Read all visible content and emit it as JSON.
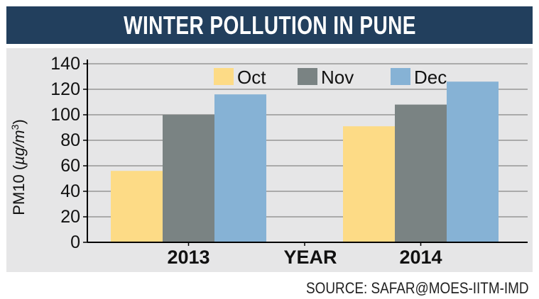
{
  "title": "WINTER POLLUTION IN PUNE",
  "source": "SOURCE: SAFAR@MOES-IITM-IMD",
  "colors": {
    "title_bg": "#223f5d",
    "panel_bg": "#e6e6e7",
    "oct": "#fddb86",
    "nov": "#7a8383",
    "dec": "#86b2d5"
  },
  "chart_data": {
    "type": "bar",
    "title": "WINTER POLLUTION IN PUNE",
    "xlabel": "YEAR",
    "ylabel_prefix": "PM10 (",
    "ylabel_unit": "µg/m",
    "ylabel_sup": "3",
    "ylabel_suffix": ")",
    "categories": [
      "2013",
      "2014"
    ],
    "series": [
      {
        "name": "Oct",
        "values": [
          56,
          91
        ]
      },
      {
        "name": "Nov",
        "values": [
          100,
          108
        ]
      },
      {
        "name": "Dec",
        "values": [
          116,
          126
        ]
      }
    ],
    "ylim": [
      0,
      140
    ],
    "yticks": [
      "0",
      "20",
      "40",
      "60",
      "80",
      "100",
      "120",
      "140"
    ],
    "grid": true,
    "legend_position": "top"
  }
}
